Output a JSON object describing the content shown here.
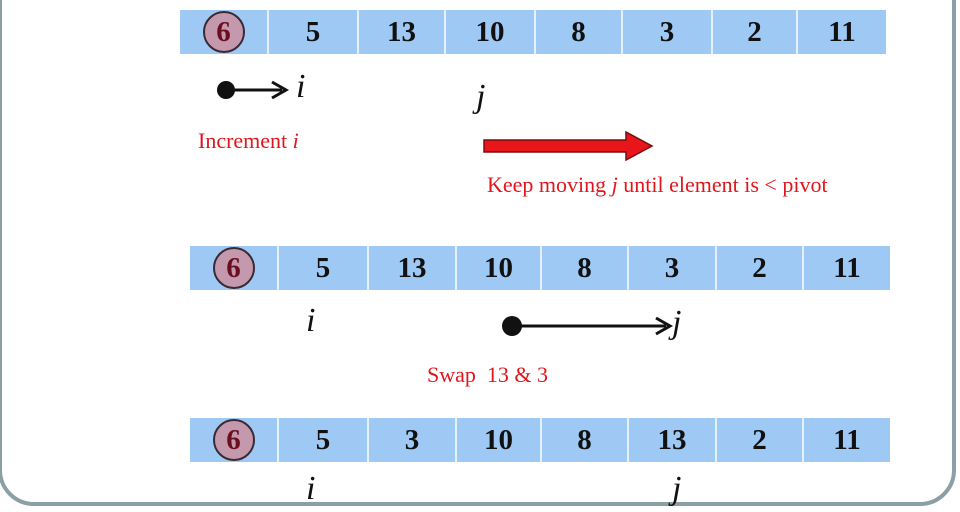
{
  "rows": [
    {
      "cells": [
        "6",
        "5",
        "13",
        "10",
        "8",
        "3",
        "2",
        "11"
      ]
    },
    {
      "cells": [
        "6",
        "5",
        "13",
        "10",
        "8",
        "3",
        "2",
        "11"
      ]
    },
    {
      "cells": [
        "6",
        "5",
        "3",
        "10",
        "8",
        "13",
        "2",
        "11"
      ]
    }
  ],
  "pointers": {
    "i": "i",
    "j": "j"
  },
  "annotations": {
    "increment_prefix": "Increment ",
    "increment_var": "i",
    "keep_prefix": "Keep moving ",
    "keep_var": "j",
    "keep_suffix": " until element is < pivot",
    "swap": "Swap  13 & 3"
  },
  "colors": {
    "cell_fill": "#9ec9f5",
    "pivot_fill": "#c498ad",
    "pivot_text": "#6b0e1f",
    "annotation_red": "#e0161d",
    "frame": "#8aa0a4"
  }
}
